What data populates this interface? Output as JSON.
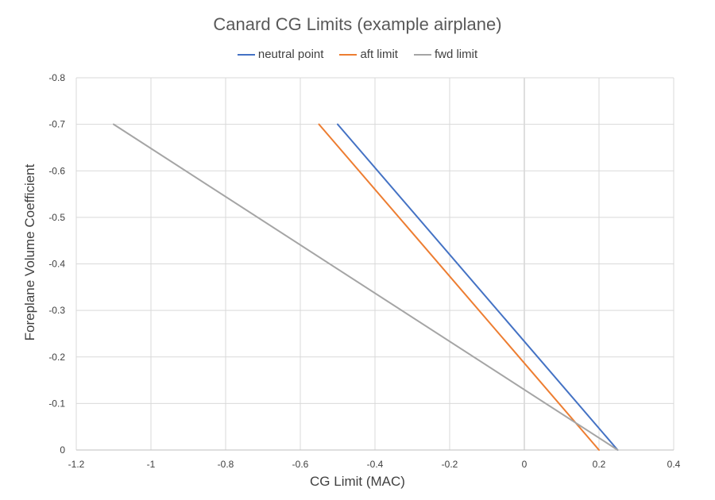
{
  "chart_data": {
    "type": "line",
    "title": "Canard CG Limits (example airplane)",
    "xlabel": "CG Limit (MAC)",
    "ylabel": "Foreplane Volume Coefficient",
    "xlim": [
      -1.2,
      0.4
    ],
    "ylim": [
      0,
      -0.8
    ],
    "y_axis_reversed": true,
    "grid": true,
    "legend_position": "top",
    "x_ticks": [
      "-1.2",
      "-1",
      "-0.8",
      "-0.6",
      "-0.4",
      "-0.2",
      "0",
      "0.2",
      "0.4"
    ],
    "y_ticks": [
      "0",
      "-0.1",
      "-0.2",
      "-0.3",
      "-0.4",
      "-0.5",
      "-0.6",
      "-0.7",
      "-0.8"
    ],
    "series": [
      {
        "name": "neutral point",
        "color": "#4472C4",
        "points": [
          [
            -0.5,
            -0.7
          ],
          [
            0.25,
            0
          ]
        ]
      },
      {
        "name": "aft limit",
        "color": "#ED7D31",
        "points": [
          [
            -0.55,
            -0.7
          ],
          [
            0.2,
            0
          ]
        ]
      },
      {
        "name": "fwd limit",
        "color": "#A5A5A5",
        "points": [
          [
            -1.1,
            -0.7
          ],
          [
            0.25,
            0
          ]
        ]
      }
    ]
  }
}
